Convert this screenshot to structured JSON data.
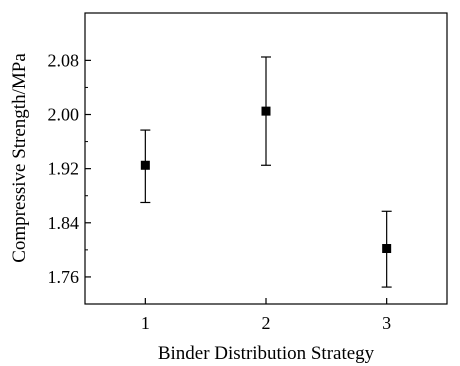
{
  "chart_data": {
    "type": "scatter",
    "xlabel": "Binder Distribution Strategy",
    "ylabel": "Compressive Strength/MPa",
    "x_ticks": [
      "1",
      "2",
      "3"
    ],
    "y_ticks": [
      "1.76",
      "1.84",
      "1.92",
      "2.00",
      "2.08"
    ],
    "xlim": [
      0.5,
      3.5
    ],
    "ylim": [
      1.72,
      2.15
    ],
    "marker": "square",
    "grid": false,
    "series": [
      {
        "x": [
          1,
          2,
          3
        ],
        "y": [
          1.925,
          2.005,
          1.802
        ],
        "err_low": [
          1.87,
          1.925,
          1.745
        ],
        "err_high": [
          1.977,
          2.085,
          1.857
        ]
      }
    ]
  }
}
